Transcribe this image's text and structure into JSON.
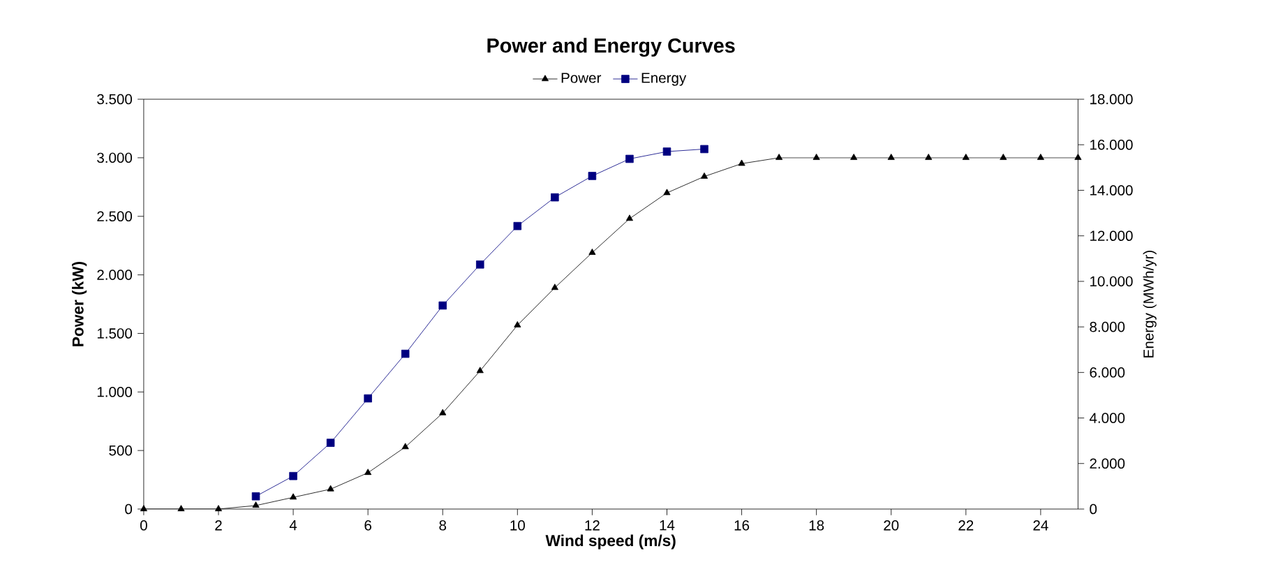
{
  "chart_data": {
    "type": "line",
    "title": "Power and Energy Curves",
    "xlabel": "Wind speed (m/s)",
    "ylabel": "Power (kW)",
    "y2label": "Energy (MWh/yr)",
    "x": [
      0,
      1,
      2,
      3,
      4,
      5,
      6,
      7,
      8,
      9,
      10,
      11,
      12,
      13,
      14,
      15,
      16,
      17,
      18,
      19,
      20,
      21,
      22,
      23,
      24,
      25
    ],
    "series": [
      {
        "name": "Power",
        "color": "#000000",
        "marker": "triangle",
        "values": [
          0,
          0,
          0,
          30,
          100,
          170,
          310,
          530,
          820,
          1180,
          1570,
          1890,
          2190,
          2480,
          2700,
          2840,
          2950,
          3000,
          3000,
          3000,
          3000,
          3000,
          3000,
          3000,
          3000,
          3000
        ]
      },
      {
        "name": "Energy",
        "color": "#000080",
        "marker": "square",
        "axis": "y2",
        "x": [
          3,
          4,
          5,
          6,
          7,
          8,
          9,
          10,
          11,
          12,
          13,
          14,
          15
        ],
        "values": [
          560,
          1450,
          2910,
          4860,
          6820,
          8940,
          10740,
          12430,
          13690,
          14630,
          15380,
          15700,
          15810
        ]
      }
    ],
    "xlim": [
      0,
      25
    ],
    "xticks": [
      0,
      2,
      4,
      6,
      8,
      10,
      12,
      14,
      16,
      18,
      20,
      22,
      24
    ],
    "ylim": [
      0,
      3500
    ],
    "yticks": [
      0,
      {
        "value": 500,
        "label": "500"
      },
      {
        "value": 1000,
        "label": "1.000"
      },
      {
        "value": 1500,
        "label": "1.500"
      },
      {
        "value": 2000,
        "label": "2.000"
      },
      {
        "value": 2500,
        "label": "2.500"
      },
      {
        "value": 3000,
        "label": "3.000"
      },
      {
        "value": 3500,
        "label": "3.500"
      }
    ],
    "y2lim": [
      0,
      18000
    ],
    "y2ticks": [
      0,
      {
        "value": 2000,
        "label": "2.000"
      },
      {
        "value": 4000,
        "label": "4.000"
      },
      {
        "value": 6000,
        "label": "6.000"
      },
      {
        "value": 8000,
        "label": "8.000"
      },
      {
        "value": 10000,
        "label": "10.000"
      },
      {
        "value": 12000,
        "label": "12.000"
      },
      {
        "value": 14000,
        "label": "14.000"
      },
      {
        "value": 16000,
        "label": "16.000"
      },
      {
        "value": 18000,
        "label": "18.000"
      }
    ],
    "legend": "top",
    "grid": false
  }
}
